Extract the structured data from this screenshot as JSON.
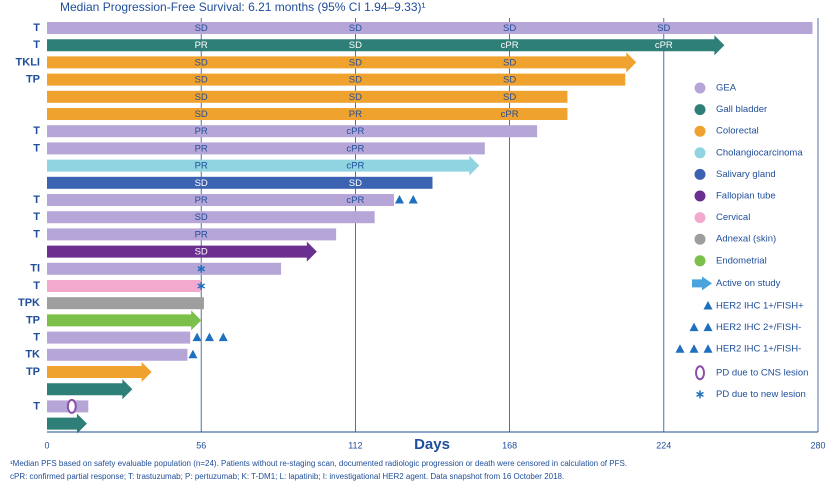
{
  "chart_data": {
    "type": "swimmer",
    "subtitle": "Median Progression-Free Survival: 6.21 months (95% CI 1.94–9.33)¹",
    "xlabel": "Days",
    "xlim": [
      0,
      280
    ],
    "xticks": [
      0,
      56,
      112,
      168,
      224,
      280
    ],
    "grid": true,
    "groups": [
      {
        "name": "GEA",
        "color": "#b6a6d8"
      },
      {
        "name": "Gall bladder",
        "color": "#2f7f79"
      },
      {
        "name": "Colorectal",
        "color": "#f0a22e"
      },
      {
        "name": "Cholangiocarcinoma",
        "color": "#90d4e1"
      },
      {
        "name": "Salivary gland",
        "color": "#3c63b1"
      },
      {
        "name": "Fallopian tube",
        "color": "#6a2f8f"
      },
      {
        "name": "Cervical",
        "color": "#f2a9cd"
      },
      {
        "name": "Adnexal (skin)",
        "color": "#9e9e9e"
      },
      {
        "name": "Endometrial",
        "color": "#7cc04b"
      }
    ],
    "active_label": "Active on study",
    "active_color": "#4aa3dc",
    "her2_legend": [
      {
        "name": "HER2 IHC 1+/FISH+",
        "count": 1
      },
      {
        "name": "HER2 IHC 2+/FISH-",
        "count": 2
      },
      {
        "name": "HER2 IHC 1+/FISH-",
        "count": 3
      }
    ],
    "cns_label": "PD due to CNS lesion",
    "new_lesion_label": "PD due to new lesion",
    "rows": [
      {
        "label": "T",
        "group": "GEA",
        "value": 278,
        "active": false,
        "responses": [
          {
            "x": 56,
            "label": "SD"
          },
          {
            "x": 112,
            "label": "SD"
          },
          {
            "x": 168,
            "label": "SD"
          },
          {
            "x": 224,
            "label": "SD"
          }
        ]
      },
      {
        "label": "T",
        "group": "Gall bladder",
        "value": 246,
        "active": true,
        "responses": [
          {
            "x": 56,
            "label": "PR"
          },
          {
            "x": 112,
            "label": "SD"
          },
          {
            "x": 168,
            "label": "cPR"
          },
          {
            "x": 224,
            "label": "cPR"
          }
        ]
      },
      {
        "label": "TKLI",
        "group": "Colorectal",
        "value": 214,
        "active": true,
        "responses": [
          {
            "x": 56,
            "label": "SD"
          },
          {
            "x": 112,
            "label": "SD"
          },
          {
            "x": 168,
            "label": "SD"
          }
        ]
      },
      {
        "label": "TP",
        "group": "Colorectal",
        "value": 210,
        "active": false,
        "responses": [
          {
            "x": 56,
            "label": "SD"
          },
          {
            "x": 112,
            "label": "SD"
          },
          {
            "x": 168,
            "label": "SD"
          }
        ]
      },
      {
        "label": null,
        "group": "Colorectal",
        "value": 189,
        "active": false,
        "responses": [
          {
            "x": 56,
            "label": "SD"
          },
          {
            "x": 112,
            "label": "SD"
          },
          {
            "x": 168,
            "label": "SD"
          }
        ]
      },
      {
        "label": null,
        "group": "Colorectal",
        "value": 189,
        "active": false,
        "responses": [
          {
            "x": 56,
            "label": "SD"
          },
          {
            "x": 112,
            "label": "PR"
          },
          {
            "x": 168,
            "label": "cPR"
          }
        ]
      },
      {
        "label": "T",
        "group": "GEA",
        "value": 178,
        "active": false,
        "responses": [
          {
            "x": 56,
            "label": "PR"
          },
          {
            "x": 112,
            "label": "cPR"
          }
        ]
      },
      {
        "label": "T",
        "group": "GEA",
        "value": 159,
        "active": false,
        "responses": [
          {
            "x": 56,
            "label": "PR"
          },
          {
            "x": 112,
            "label": "cPR"
          }
        ]
      },
      {
        "label": null,
        "group": "Cholangiocarcinoma",
        "value": 157,
        "active": true,
        "responses": [
          {
            "x": 56,
            "label": "PR"
          },
          {
            "x": 112,
            "label": "cPR"
          }
        ]
      },
      {
        "label": null,
        "group": "Salivary gland",
        "value": 140,
        "active": false,
        "responses": [
          {
            "x": 56,
            "label": "SD"
          },
          {
            "x": 112,
            "label": "SD"
          }
        ]
      },
      {
        "label": "T",
        "group": "GEA",
        "value": 126,
        "active": false,
        "responses": [
          {
            "x": 56,
            "label": "PR"
          },
          {
            "x": 112,
            "label": "cPR"
          }
        ],
        "her2": [
          128,
          133
        ]
      },
      {
        "label": "T",
        "group": "GEA",
        "value": 119,
        "active": false,
        "responses": [
          {
            "x": 56,
            "label": "SD"
          }
        ]
      },
      {
        "label": "T",
        "group": "GEA",
        "value": 105,
        "active": false,
        "responses": [
          {
            "x": 56,
            "label": "PR"
          }
        ]
      },
      {
        "label": null,
        "group": "Fallopian tube",
        "value": 98,
        "active": true,
        "responses": [
          {
            "x": 56,
            "label": "SD"
          }
        ]
      },
      {
        "label": "TI",
        "group": "GEA",
        "value": 85,
        "active": false,
        "responses": [],
        "new_lesion": [
          56
        ]
      },
      {
        "label": "T",
        "group": "Cervical",
        "value": 56,
        "active": false,
        "responses": [],
        "new_lesion": [
          56
        ]
      },
      {
        "label": "TPK",
        "group": "Adnexal (skin)",
        "value": 57,
        "active": false,
        "responses": []
      },
      {
        "label": "TP",
        "group": "Endometrial",
        "value": 56,
        "active": true,
        "responses": []
      },
      {
        "label": "T",
        "group": "GEA",
        "value": 52,
        "active": false,
        "responses": [],
        "her2": [
          54.5,
          59,
          64
        ]
      },
      {
        "label": "TK",
        "group": "GEA",
        "value": 51,
        "active": false,
        "responses": [],
        "her2": [
          53
        ]
      },
      {
        "label": "TP",
        "group": "Colorectal",
        "value": 38,
        "active": true,
        "responses": []
      },
      {
        "label": null,
        "group": "Gall bladder",
        "value": 31,
        "active": true,
        "responses": []
      },
      {
        "label": "T",
        "group": "GEA",
        "value": 15,
        "active": false,
        "responses": [],
        "cns": [
          9
        ]
      },
      {
        "label": null,
        "group": "Gall bladder",
        "value": 14.5,
        "active": true,
        "responses": []
      }
    ],
    "footnotes": [
      "¹Median PFS based on safety evaluable population (n=24). Patients without re-staging scan, documented radiologic progression or death were censored in calculation of PFS.",
      "cPR: confirmed partial response; T: trastuzumab; P: pertuzumab; K: T-DM1; L: lapatinib; I: investigational HER2 agent. Data snapshot from 16 October 2018."
    ]
  }
}
